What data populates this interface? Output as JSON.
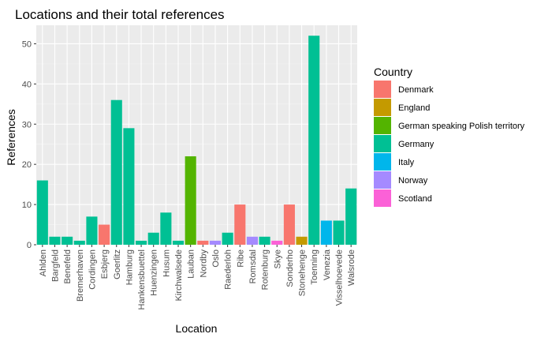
{
  "chart_data": {
    "type": "bar",
    "title": "Locations and their total references",
    "xlabel": "Location",
    "ylabel": "References",
    "ylim": [
      0,
      54.6
    ],
    "yticks": [
      0,
      10,
      20,
      30,
      40,
      50
    ],
    "grid": true,
    "legend_position": "right",
    "legend_title": "Country",
    "categories": [
      "Ahlden",
      "Bargfeld",
      "Benefeld",
      "Bremerhaven",
      "Cordingen",
      "Esbjerg",
      "Goerlitz",
      "Hamburg",
      "Hankensbuettel",
      "Huenzingen",
      "Husum",
      "Kirchwalsede",
      "Lauban",
      "Nordby",
      "Oslo",
      "Raederloh",
      "Ribe",
      "Romsdal",
      "Rotenburg",
      "Skye",
      "Sonderho",
      "Stonehenge",
      "Toenning",
      "Venezia",
      "Visselhoevede",
      "Walsrode"
    ],
    "values": [
      16,
      2,
      2,
      1,
      7,
      5,
      36,
      29,
      1,
      3,
      8,
      1,
      22,
      1,
      1,
      3,
      10,
      2,
      2,
      1,
      10,
      2,
      52,
      6,
      6,
      14
    ],
    "country": [
      "Germany",
      "Germany",
      "Germany",
      "Germany",
      "Germany",
      "Denmark",
      "Germany",
      "Germany",
      "Germany",
      "Germany",
      "Germany",
      "Germany",
      "German speaking Polish territory",
      "Denmark",
      "Norway",
      "Germany",
      "Denmark",
      "Norway",
      "Germany",
      "Scotland",
      "Denmark",
      "England",
      "Germany",
      "Italy",
      "Germany",
      "Germany"
    ],
    "legend": [
      {
        "name": "Denmark",
        "color": "#F8766D"
      },
      {
        "name": "England",
        "color": "#C49A00"
      },
      {
        "name": "German speaking Polish territory",
        "color": "#53B400"
      },
      {
        "name": "Germany",
        "color": "#00C094"
      },
      {
        "name": "Italy",
        "color": "#00B6EB"
      },
      {
        "name": "Norway",
        "color": "#A58AFF"
      },
      {
        "name": "Scotland",
        "color": "#FB61D7"
      }
    ]
  }
}
